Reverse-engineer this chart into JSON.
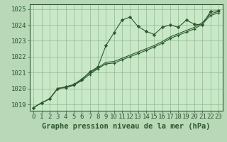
{
  "title": "Graphe pression niveau de la mer (hPa)",
  "background_color": "#b8d8b8",
  "plot_bg_color": "#c8e8c8",
  "grid_color": "#90b890",
  "line_color": "#2d5a2d",
  "marker_color": "#2d5a2d",
  "xlim": [
    -0.5,
    23.5
  ],
  "ylim": [
    1018.6,
    1025.3
  ],
  "yticks": [
    1019,
    1020,
    1021,
    1022,
    1023,
    1024,
    1025
  ],
  "xticks": [
    0,
    1,
    2,
    3,
    4,
    5,
    6,
    7,
    8,
    9,
    10,
    11,
    12,
    13,
    14,
    15,
    16,
    17,
    18,
    19,
    20,
    21,
    22,
    23
  ],
  "series1": [
    1018.8,
    1019.1,
    1019.35,
    1020.0,
    1020.1,
    1020.25,
    1020.55,
    1021.05,
    1021.35,
    1022.7,
    1023.5,
    1024.3,
    1024.5,
    1023.9,
    1023.6,
    1023.4,
    1023.85,
    1024.0,
    1023.85,
    1024.3,
    1024.05,
    1024.0,
    1024.85,
    1024.9
  ],
  "series2": [
    1018.8,
    1019.1,
    1019.35,
    1020.0,
    1020.05,
    1020.2,
    1020.5,
    1020.9,
    1021.25,
    1021.55,
    1021.6,
    1021.8,
    1022.0,
    1022.2,
    1022.4,
    1022.6,
    1022.85,
    1023.15,
    1023.35,
    1023.55,
    1023.75,
    1024.05,
    1024.6,
    1024.75
  ],
  "series3": [
    1018.8,
    1019.1,
    1019.35,
    1020.0,
    1020.1,
    1020.25,
    1020.6,
    1021.0,
    1021.3,
    1021.65,
    1021.7,
    1021.9,
    1022.1,
    1022.3,
    1022.5,
    1022.7,
    1022.95,
    1023.25,
    1023.45,
    1023.65,
    1023.85,
    1024.15,
    1024.7,
    1024.85
  ],
  "xlabel_fontsize": 6.5,
  "ylabel_fontsize": 6.5,
  "title_fontsize": 7.5
}
